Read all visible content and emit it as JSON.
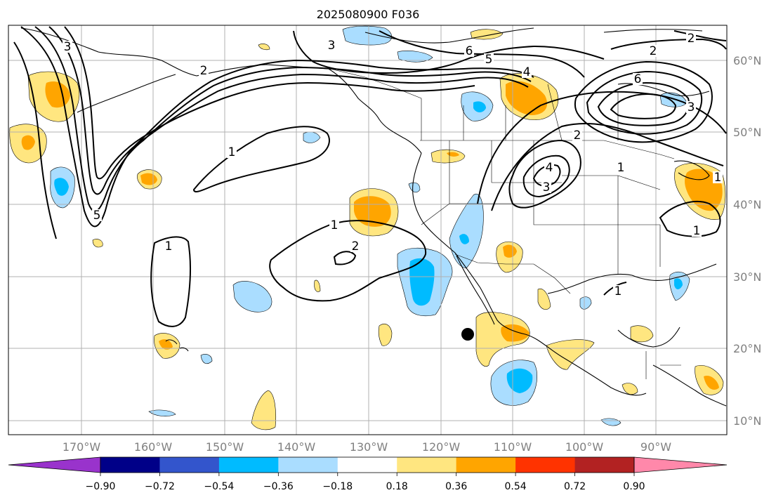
{
  "title": "2025080900 F036",
  "map": {
    "lat_labels": [
      "60°N",
      "50°N",
      "40°N",
      "30°N",
      "20°N",
      "10°N"
    ],
    "lon_labels": [
      "170°W",
      "160°W",
      "150°W",
      "140°W",
      "130°W",
      "120°W",
      "110°W",
      "100°W",
      "90°W"
    ],
    "contour_labels": [
      "1",
      "1",
      "1",
      "1",
      "1",
      "1",
      "1",
      "2",
      "2",
      "2",
      "2",
      "2",
      "3",
      "3",
      "3",
      "3",
      "4",
      "4",
      "5",
      "5",
      "6",
      "6"
    ],
    "marker": "filled black circle near 116°W, 22°N"
  },
  "colorbar": {
    "tick_labels": [
      "−0.90",
      "−0.72",
      "−0.54",
      "−0.36",
      "−0.18",
      "0.18",
      "0.36",
      "0.54",
      "0.72",
      "0.90"
    ],
    "colors": [
      "#9933cc",
      "#000088",
      "#3355cc",
      "#00bbff",
      "#aaddff",
      "#ffffff",
      "#ffe680",
      "#ffa500",
      "#ff3300",
      "#b22222",
      "#ff88aa"
    ]
  },
  "colors": {
    "pos_weak": "#ffe680",
    "pos_mod": "#ffa500",
    "neg_weak": "#aaddff",
    "neg_mod": "#00bbff"
  }
}
